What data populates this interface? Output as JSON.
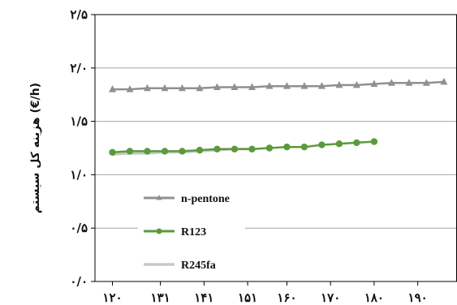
{
  "chart_data": {
    "type": "line",
    "ylabel": "هزینه کل سیستم (€/h)",
    "x": [
      120,
      124,
      128,
      132,
      136,
      140,
      144,
      148,
      152,
      156,
      160,
      164,
      168,
      172,
      176,
      180,
      184,
      188,
      192,
      196
    ],
    "x_tick_labels": [
      "۱۲۰",
      "۱۳۱",
      "۱۴۱",
      "۱۵۱",
      "۱۶۰",
      "۱۷۰",
      "۱۸۰",
      "۱۹۰"
    ],
    "x_tick_values": [
      120,
      131,
      141,
      151,
      160,
      170,
      180,
      190
    ],
    "xlim": [
      116,
      199
    ],
    "y_tick_labels": [
      "۰/۰",
      "۰/۵",
      "۱/۰",
      "۱/۵",
      "۲/۰",
      "۲/۵"
    ],
    "y_tick_values": [
      0,
      0.5,
      1.0,
      1.5,
      2.0,
      2.5
    ],
    "ylim": [
      0,
      2.5
    ],
    "grid": "horizontal",
    "legend_position": "bottom-left",
    "series": [
      {
        "name": "n-pentone",
        "color": "#909090",
        "marker": "triangle",
        "x": [
          120,
          124,
          128,
          132,
          136,
          140,
          144,
          148,
          152,
          156,
          160,
          164,
          168,
          172,
          176,
          180,
          184,
          188,
          192,
          196
        ],
        "values": [
          1.8,
          1.8,
          1.81,
          1.81,
          1.81,
          1.81,
          1.82,
          1.82,
          1.82,
          1.83,
          1.83,
          1.83,
          1.83,
          1.84,
          1.84,
          1.85,
          1.86,
          1.86,
          1.86,
          1.87
        ]
      },
      {
        "name": "R123",
        "color": "#5b9a3c",
        "marker": "circle",
        "x": [
          120,
          124,
          128,
          132,
          136,
          140,
          144,
          148,
          152,
          156,
          160,
          164,
          168,
          172,
          176,
          180
        ],
        "values": [
          1.21,
          1.22,
          1.22,
          1.22,
          1.22,
          1.23,
          1.24,
          1.24,
          1.24,
          1.25,
          1.26,
          1.26,
          1.28,
          1.29,
          1.3,
          1.31
        ]
      },
      {
        "name": "R245fa",
        "color": "#c8c8c8",
        "marker": "none",
        "x": [
          120,
          124,
          128,
          132,
          136,
          140,
          144,
          148,
          152
        ],
        "values": [
          1.19,
          1.2,
          1.2,
          1.21,
          1.21,
          1.22,
          1.23,
          1.24,
          1.24
        ]
      }
    ]
  }
}
